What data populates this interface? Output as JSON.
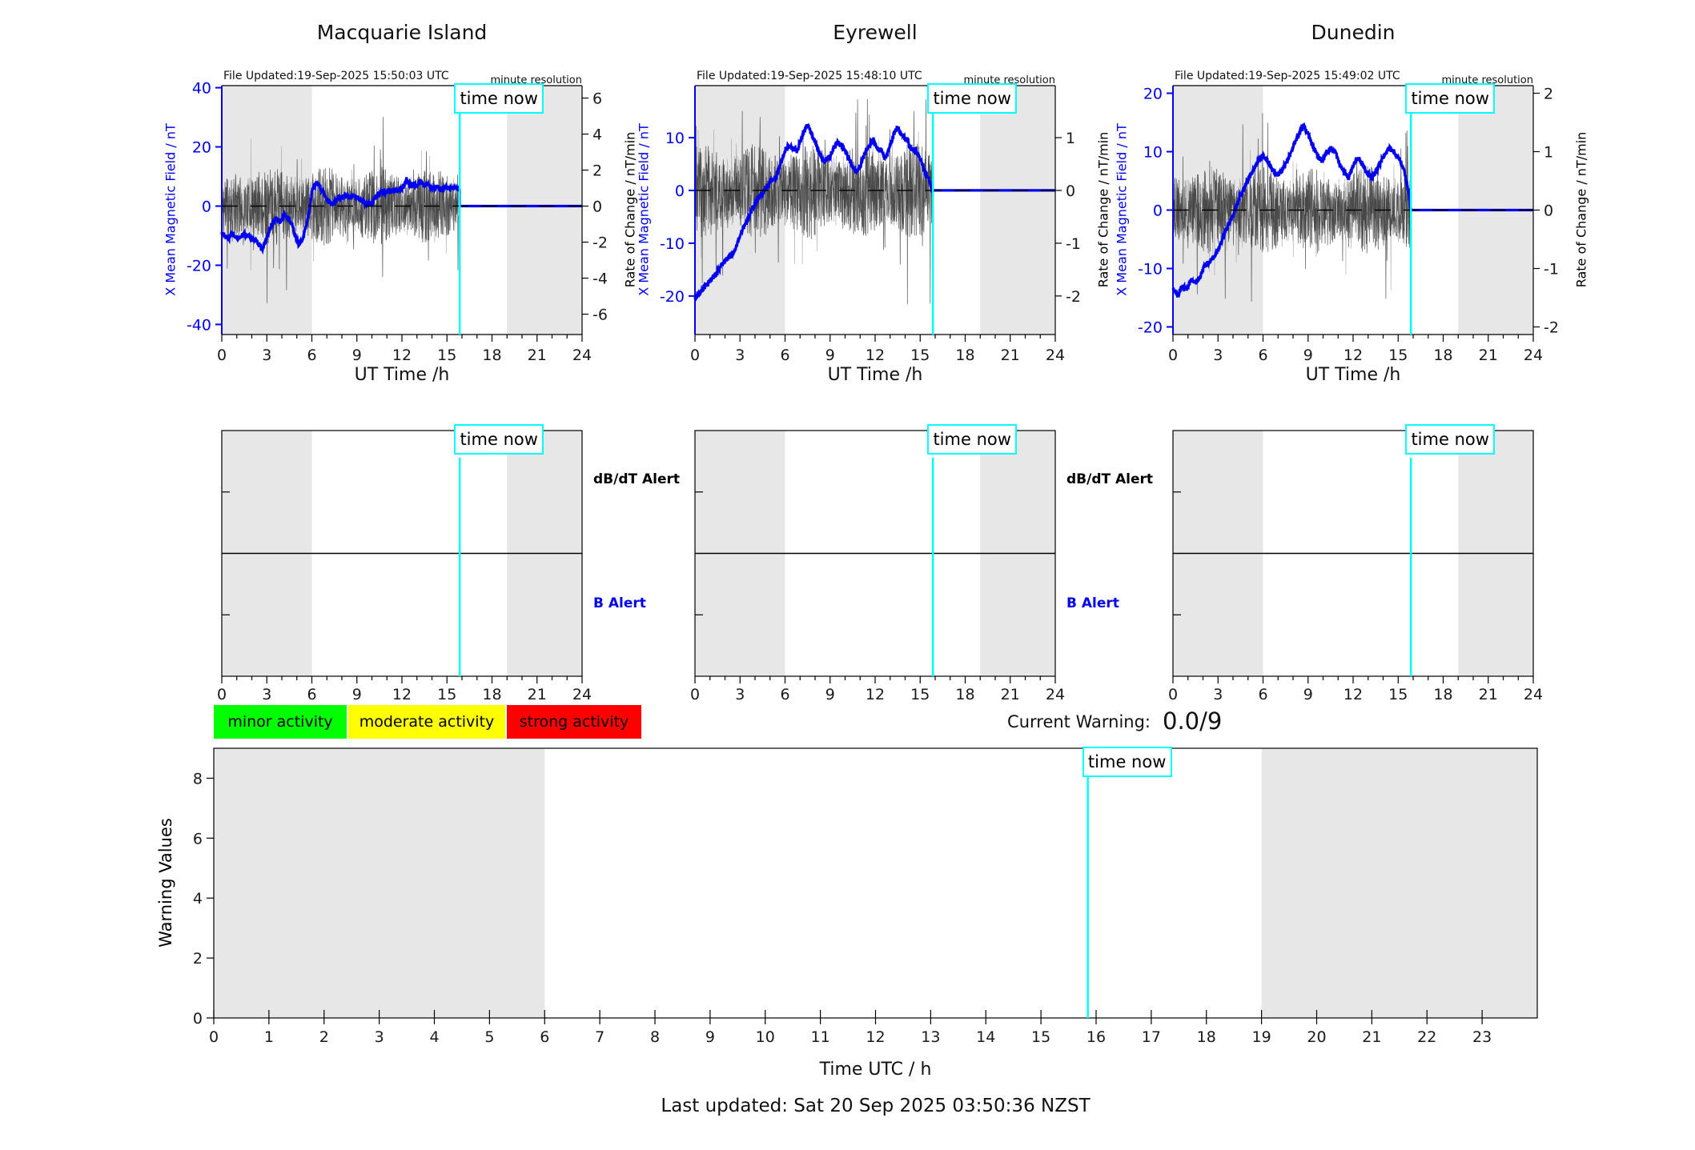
{
  "colors": {
    "accent_blue": "#0000ee",
    "cyan_marker": "#00ffff",
    "night_shade": "#e7e7e7",
    "noise_dark": "#2a2a2a",
    "noise_light": "#a0a0a0",
    "legend_green": "#00ff00",
    "legend_yellow": "#ffff00",
    "legend_red": "#ff0000"
  },
  "time_now": {
    "value": 15.85,
    "label": "time now"
  },
  "night_bands": [
    [
      0,
      6
    ],
    [
      19,
      24
    ]
  ],
  "chart_data": {
    "stations": [
      {
        "type": "line",
        "title": "Macquarie Island",
        "file_updated": "File Updated:19-Sep-2025 15:50:03 UTC",
        "resolution_note": "minute resolution",
        "x_axis": {
          "label": "UT Time /h",
          "major_ticks": [
            0,
            3,
            6,
            9,
            12,
            15,
            18,
            21,
            24
          ],
          "minor_step": 1,
          "lim": [
            0,
            24
          ]
        },
        "left_axis": {
          "label": "X Mean Magnetic Field / nT",
          "ticks": [
            40,
            20,
            0,
            -20,
            -40
          ],
          "lim": [
            -43.4,
            40.7
          ]
        },
        "right_axis": {
          "label": "Rate of Change / nT/min",
          "ticks": [
            6,
            4,
            2,
            0,
            -2,
            -4,
            -6
          ],
          "lim": [
            -7.13,
            6.69
          ]
        },
        "series": {
          "field": {
            "name": "X mean magnetic field / nT",
            "jitter": 0.8,
            "keypoints": [
              [
                0,
                -9
              ],
              [
                0.4,
                -11
              ],
              [
                0.7,
                -9.5
              ],
              [
                1.1,
                -11
              ],
              [
                1.5,
                -9.5
              ],
              [
                1.9,
                -10.5
              ],
              [
                2.2,
                -11.5
              ],
              [
                2.45,
                -13
              ],
              [
                2.7,
                -15
              ],
              [
                2.9,
                -12
              ],
              [
                3.1,
                -9
              ],
              [
                3.35,
                -6
              ],
              [
                3.6,
                -4
              ],
              [
                3.9,
                -5.5
              ],
              [
                4.2,
                -3
              ],
              [
                4.5,
                -4.5
              ],
              [
                4.75,
                -7
              ],
              [
                4.95,
                -11
              ],
              [
                5.15,
                -13
              ],
              [
                5.4,
                -11
              ],
              [
                5.65,
                -6
              ],
              [
                5.85,
                -1
              ],
              [
                6.05,
                6
              ],
              [
                6.3,
                8
              ],
              [
                6.55,
                6.5
              ],
              [
                6.8,
                4
              ],
              [
                7.1,
                1.5
              ],
              [
                7.35,
                0.5
              ],
              [
                7.6,
                2
              ],
              [
                7.9,
                3
              ],
              [
                8.2,
                3.5
              ],
              [
                8.5,
                3
              ],
              [
                8.8,
                3.5
              ],
              [
                9.1,
                2.5
              ],
              [
                9.4,
                1.5
              ],
              [
                9.7,
                0.5
              ],
              [
                10,
                1
              ],
              [
                10.3,
                3.5
              ],
              [
                10.6,
                5
              ],
              [
                10.9,
                4.5
              ],
              [
                11.2,
                5.5
              ],
              [
                11.5,
                5
              ],
              [
                11.8,
                5.5
              ],
              [
                12.1,
                6.5
              ],
              [
                12.3,
                9
              ],
              [
                12.5,
                7
              ],
              [
                12.8,
                7.5
              ],
              [
                13,
                6.5
              ],
              [
                13.2,
                8.5
              ],
              [
                13.45,
                7
              ],
              [
                13.7,
                7.5
              ],
              [
                14,
                6
              ],
              [
                14.3,
                6.5
              ],
              [
                14.6,
                5.5
              ],
              [
                14.9,
                6.5
              ],
              [
                15.2,
                6
              ],
              [
                15.5,
                6.5
              ],
              [
                15.85,
                6
              ]
            ]
          },
          "rate": {
            "name": "rate of change / nT/min",
            "axis": "right",
            "noise_amp": 2.2,
            "noise_spike": 3.5,
            "seed": 11
          },
          "forecast": {
            "name": "forecast",
            "value": 0
          }
        }
      },
      {
        "type": "line",
        "title": "Eyrewell",
        "file_updated": "File Updated:19-Sep-2025 15:48:10 UTC",
        "resolution_note": "minute resolution",
        "x_axis": {
          "label": "UT Time /h",
          "major_ticks": [
            0,
            3,
            6,
            9,
            12,
            15,
            18,
            21,
            24
          ],
          "minor_step": 1,
          "lim": [
            0,
            24
          ]
        },
        "left_axis": {
          "label": "X Mean Magnetic Field / nT",
          "ticks": [
            10,
            0,
            -10,
            -20
          ],
          "lim": [
            -27.3,
            19.85
          ]
        },
        "right_axis": {
          "label": "Rate of Change / nT/min",
          "ticks": [
            1,
            0,
            -1,
            -2
          ],
          "lim": [
            -2.73,
            1.985
          ]
        },
        "series": {
          "field": {
            "name": "X mean magnetic field / nT",
            "jitter": 0.5,
            "keypoints": [
              [
                0,
                -20.5
              ],
              [
                0.3,
                -19.5
              ],
              [
                0.6,
                -18.5
              ],
              [
                0.9,
                -17.5
              ],
              [
                1.2,
                -16.5
              ],
              [
                1.5,
                -15.5
              ],
              [
                1.8,
                -14
              ],
              [
                2.1,
                -13
              ],
              [
                2.4,
                -12.5
              ],
              [
                2.7,
                -11
              ],
              [
                3,
                -8.5
              ],
              [
                3.3,
                -6.5
              ],
              [
                3.6,
                -5
              ],
              [
                3.9,
                -3
              ],
              [
                4.2,
                -1.5
              ],
              [
                4.5,
                -0.5
              ],
              [
                4.8,
                1
              ],
              [
                5.1,
                1.8
              ],
              [
                5.4,
                2.5
              ],
              [
                5.7,
                5
              ],
              [
                6,
                7.5
              ],
              [
                6.2,
                8.5
              ],
              [
                6.5,
                8
              ],
              [
                6.8,
                7.5
              ],
              [
                7,
                9
              ],
              [
                7.3,
                11.5
              ],
              [
                7.5,
                12.5
              ],
              [
                7.8,
                10.5
              ],
              [
                8,
                9
              ],
              [
                8.3,
                7
              ],
              [
                8.6,
                5.5
              ],
              [
                9,
                6.5
              ],
              [
                9.3,
                8.5
              ],
              [
                9.5,
                9
              ],
              [
                9.8,
                8.5
              ],
              [
                10.1,
                7
              ],
              [
                10.4,
                5
              ],
              [
                10.7,
                3.5
              ],
              [
                11,
                4.5
              ],
              [
                11.3,
                7
              ],
              [
                11.6,
                8.5
              ],
              [
                11.9,
                9.5
              ],
              [
                12.1,
                8
              ],
              [
                12.4,
                7.5
              ],
              [
                12.7,
                6
              ],
              [
                13,
                8.5
              ],
              [
                13.3,
                11
              ],
              [
                13.5,
                12
              ],
              [
                13.8,
                10.5
              ],
              [
                14.1,
                9.5
              ],
              [
                14.4,
                8
              ],
              [
                14.7,
                7.5
              ],
              [
                15,
                6
              ],
              [
                15.3,
                3.5
              ],
              [
                15.6,
                2
              ],
              [
                15.85,
                -0.5
              ]
            ]
          },
          "rate": {
            "name": "rate of change / nT/min",
            "axis": "right",
            "noise_amp": 0.9,
            "noise_spike": 1.6,
            "seed": 23
          },
          "forecast": {
            "name": "forecast",
            "value": 0
          }
        }
      },
      {
        "type": "line",
        "title": "Dunedin",
        "file_updated": "File Updated:19-Sep-2025 15:49:02 UTC",
        "resolution_note": "minute resolution",
        "x_axis": {
          "label": "UT Time /h",
          "major_ticks": [
            0,
            3,
            6,
            9,
            12,
            15,
            18,
            21,
            24
          ],
          "minor_step": 1,
          "lim": [
            0,
            24
          ]
        },
        "left_axis": {
          "label": "X Mean Magnetic Field / nT",
          "ticks": [
            20,
            10,
            0,
            -10,
            -20
          ],
          "lim": [
            -21.3,
            21.3
          ]
        },
        "right_axis": {
          "label": "Rate of Change / nT/min",
          "ticks": [
            2,
            1,
            0,
            -1,
            -2
          ],
          "lim": [
            -2.13,
            2.13
          ]
        },
        "series": {
          "field": {
            "name": "X mean magnetic field / nT",
            "jitter": 0.45,
            "keypoints": [
              [
                0,
                -13.5
              ],
              [
                0.3,
                -14.5
              ],
              [
                0.6,
                -13
              ],
              [
                0.9,
                -13.5
              ],
              [
                1.2,
                -12
              ],
              [
                1.5,
                -12.5
              ],
              [
                1.8,
                -11.5
              ],
              [
                2.1,
                -9.5
              ],
              [
                2.4,
                -9
              ],
              [
                2.7,
                -8
              ],
              [
                3,
                -7
              ],
              [
                3.3,
                -5
              ],
              [
                3.6,
                -3
              ],
              [
                3.9,
                -1.5
              ],
              [
                4.2,
                0.5
              ],
              [
                4.5,
                2.5
              ],
              [
                4.8,
                4
              ],
              [
                5.1,
                5.5
              ],
              [
                5.4,
                7
              ],
              [
                5.7,
                8.5
              ],
              [
                6,
                9.3
              ],
              [
                6.3,
                8.5
              ],
              [
                6.6,
                7
              ],
              [
                6.9,
                6
              ],
              [
                7.2,
                6.5
              ],
              [
                7.5,
                8
              ],
              [
                7.8,
                9.5
              ],
              [
                8.1,
                11.5
              ],
              [
                8.4,
                13
              ],
              [
                8.7,
                14.5
              ],
              [
                9,
                13
              ],
              [
                9.3,
                11
              ],
              [
                9.6,
                9.5
              ],
              [
                9.9,
                8.5
              ],
              [
                10.2,
                9.5
              ],
              [
                10.5,
                10.5
              ],
              [
                10.8,
                10
              ],
              [
                11.1,
                8
              ],
              [
                11.4,
                6.5
              ],
              [
                11.7,
                5.5
              ],
              [
                12,
                7.5
              ],
              [
                12.3,
                9
              ],
              [
                12.6,
                8
              ],
              [
                12.9,
                6.5
              ],
              [
                13.2,
                5.5
              ],
              [
                13.5,
                6.5
              ],
              [
                13.8,
                8
              ],
              [
                14.1,
                9.5
              ],
              [
                14.4,
                10.5
              ],
              [
                14.7,
                10
              ],
              [
                15,
                9
              ],
              [
                15.3,
                7.5
              ],
              [
                15.6,
                4.5
              ],
              [
                15.85,
                0
              ]
            ]
          },
          "rate": {
            "name": "rate of change / nT/min",
            "axis": "right",
            "noise_amp": 0.75,
            "noise_spike": 1.2,
            "seed": 37
          },
          "forecast": {
            "name": "forecast",
            "value": 0
          }
        }
      }
    ],
    "alert_panels": {
      "count": 3,
      "x_axis": {
        "major_ticks": [
          0,
          3,
          6,
          9,
          12,
          15,
          18,
          21,
          24
        ],
        "minor_step": 1,
        "lim": [
          0,
          24
        ]
      },
      "dbdt_label": "dB/dT Alert",
      "b_label": "B Alert",
      "labeled_panels": [
        0,
        1
      ]
    },
    "warning_chart": {
      "type": "line",
      "ylabel": "Warning Values",
      "xlabel": "Time UTC / h",
      "y_ticks": [
        0,
        2,
        4,
        6,
        8
      ],
      "ylim": [
        0,
        9
      ],
      "x_ticks": [
        0,
        1,
        2,
        3,
        4,
        5,
        6,
        7,
        8,
        9,
        10,
        11,
        12,
        13,
        14,
        15,
        16,
        17,
        18,
        19,
        20,
        21,
        22,
        23
      ],
      "xlim": [
        0,
        24
      ],
      "series": []
    }
  },
  "legend": [
    {
      "label": "minor activity",
      "color": "#00ff00"
    },
    {
      "label": "moderate activity",
      "color": "#ffff00"
    },
    {
      "label": "strong activity",
      "color": "#ff0000"
    }
  ],
  "current_warning": {
    "label": "Current Warning:",
    "value": "0.0/9"
  },
  "footer": {
    "last_updated": "Last updated: Sat 20 Sep 2025 03:50:36 NZST"
  }
}
